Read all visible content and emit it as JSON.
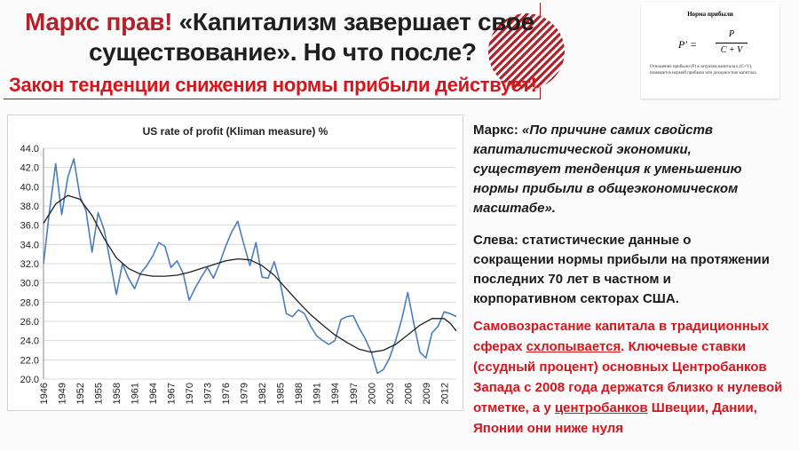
{
  "title": {
    "line1_red": "Маркс прав!",
    "line1_rest": " «Капитализм завершает свое",
    "line2": "существование». Но что после?",
    "line3": "Закон тенденции снижения нормы прибыли действует!"
  },
  "formula_card": {
    "title": "Норма прибыли",
    "lhs": "P′ =",
    "numerator": "P",
    "denominator": "C + V",
    "note": "Отношение прибыли (P) к затратам капитала к (C+V), называется нормой прибыли или доходностью капитала."
  },
  "quote": {
    "prefix": "Маркс: ",
    "text": "«По причине самих свойств капиталистической экономики, существует тенденция к уменьшению нормы прибыли в общеэкономическом масштабе»."
  },
  "left_note": "Слева: статистические данные о сокращении нормы прибыли на протяжении последних 70 лет в частном и корпоративном секторах США.",
  "red_para": {
    "p1": "Самовозрастание капитала в традиционных сферах ",
    "p1_underlined": "схлопывается",
    "p2": ". Ключевые ставки (ссудный процент) основных Центробанков Запада с 2008 года держатся близко к нулевой отметке, а у ",
    "p2_underlined": "центробанков",
    "p3": " Швеции, Дании, Японии они ниже нуля"
  },
  "chart_data": {
    "type": "line",
    "title": "US rate of profit (Kliman measure) %",
    "xlabel": "",
    "ylabel": "",
    "ylim": [
      20,
      44
    ],
    "yticks": [
      "20.0",
      "22.0",
      "24.0",
      "26.0",
      "28.0",
      "30.0",
      "32.0",
      "34.0",
      "36.0",
      "38.0",
      "40.0",
      "42.0",
      "44.0"
    ],
    "xticks": [
      "1946",
      "1949",
      "1952",
      "1955",
      "1958",
      "1961",
      "1964",
      "1967",
      "1970",
      "1973",
      "1976",
      "1979",
      "1982",
      "1985",
      "1988",
      "1991",
      "1994",
      "1997",
      "2000",
      "2003",
      "2006",
      "2009",
      "2012"
    ],
    "grid": "horizontal",
    "series": [
      {
        "color": "#4a7ebb",
        "x": [
          1946,
          1947,
          1948,
          1949,
          1950,
          1951,
          1952,
          1953,
          1954,
          1955,
          1956,
          1957,
          1958,
          1959,
          1960,
          1961,
          1962,
          1963,
          1964,
          1965,
          1966,
          1967,
          1968,
          1969,
          1970,
          1971,
          1972,
          1973,
          1974,
          1975,
          1976,
          1977,
          1978,
          1979,
          1980,
          1981,
          1982,
          1983,
          1984,
          1985,
          1986,
          1987,
          1988,
          1989,
          1990,
          1991,
          1992,
          1993,
          1994,
          1995,
          1996,
          1997,
          1998,
          1999,
          2000,
          2001,
          2002,
          2003,
          2004,
          2005,
          2006,
          2007,
          2008,
          2009,
          2010,
          2011,
          2012,
          2013,
          2014
        ],
        "y": [
          32.0,
          37.5,
          42.4,
          37.1,
          41.0,
          42.9,
          39.0,
          37.5,
          33.2,
          37.3,
          35.5,
          32.2,
          28.8,
          32.0,
          30.5,
          29.4,
          31.0,
          31.8,
          32.8,
          34.2,
          33.8,
          31.6,
          32.3,
          31.0,
          28.2,
          29.5,
          30.6,
          31.6,
          30.5,
          32.0,
          33.8,
          35.3,
          36.4,
          34.0,
          31.8,
          34.2,
          30.6,
          30.5,
          32.2,
          30.0,
          26.8,
          26.5,
          27.2,
          26.8,
          25.5,
          24.5,
          24.0,
          23.6,
          24.0,
          26.2,
          26.5,
          26.6,
          25.3,
          24.2,
          22.8,
          20.6,
          21.0,
          22.2,
          24.0,
          26.2,
          29.0,
          25.8,
          22.8,
          22.2,
          24.8,
          25.5,
          27.0,
          26.8,
          26.5
        ]
      },
      {
        "color": "#1f1f1f",
        "x": [
          1946,
          1948,
          1950,
          1952,
          1954,
          1956,
          1958,
          1960,
          1962,
          1964,
          1966,
          1968,
          1970,
          1972,
          1974,
          1976,
          1978,
          1980,
          1982,
          1984,
          1986,
          1988,
          1990,
          1992,
          1994,
          1996,
          1998,
          2000,
          2002,
          2004,
          2006,
          2008,
          2010,
          2012,
          2013,
          2014
        ],
        "y": [
          36.2,
          38.2,
          39.1,
          38.7,
          37.0,
          34.6,
          32.6,
          31.5,
          30.9,
          30.7,
          30.7,
          30.8,
          31.1,
          31.5,
          31.9,
          32.3,
          32.5,
          32.4,
          31.8,
          30.8,
          29.4,
          28.0,
          26.7,
          25.6,
          24.6,
          23.8,
          23.1,
          22.8,
          23.0,
          23.6,
          24.6,
          25.6,
          26.3,
          26.3,
          25.8,
          25.0
        ]
      }
    ]
  }
}
